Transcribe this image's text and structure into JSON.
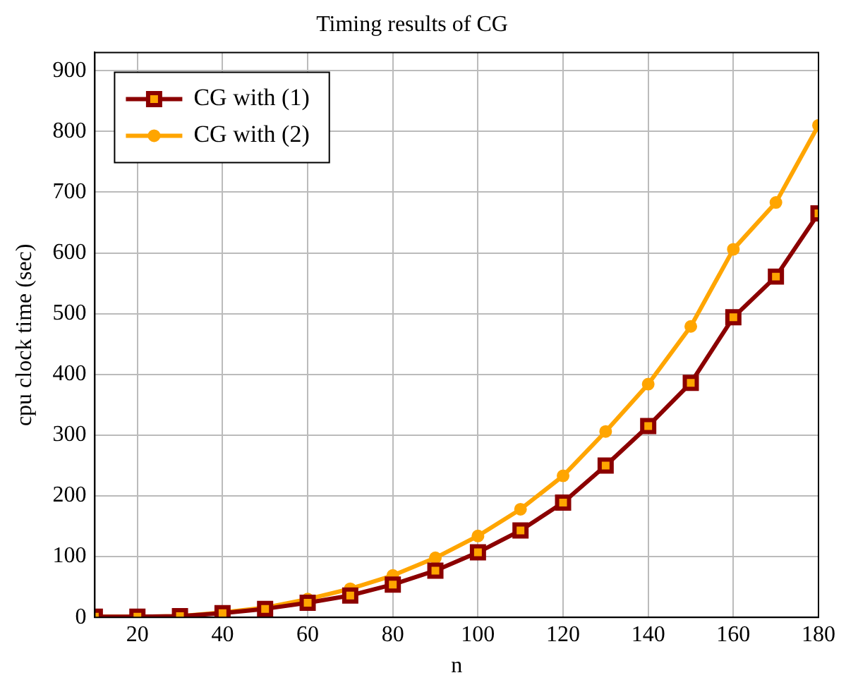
{
  "chart_data": {
    "type": "line",
    "title": "Timing results of CG",
    "xlabel": "n",
    "ylabel": "cpu clock time (sec)",
    "x": [
      10,
      20,
      30,
      40,
      50,
      60,
      70,
      80,
      90,
      100,
      110,
      120,
      130,
      140,
      150,
      160,
      170,
      180
    ],
    "series": [
      {
        "name": "CG with (1)",
        "color": "#8b0000",
        "marker": "square",
        "values": [
          1,
          1,
          2,
          7,
          14,
          24,
          36,
          54,
          77,
          107,
          143,
          189,
          250,
          315,
          386,
          494,
          561,
          665
        ]
      },
      {
        "name": "CG with (2)",
        "color": "#ffa500",
        "marker": "circle",
        "values": [
          1,
          1,
          2,
          8,
          16,
          30,
          47,
          69,
          98,
          134,
          178,
          233,
          306,
          384,
          479,
          606,
          683,
          810
        ]
      }
    ],
    "xlim": [
      10,
      180
    ],
    "xticks": [
      20,
      40,
      60,
      80,
      100,
      120,
      140,
      160,
      180
    ],
    "ylim": [
      0,
      930
    ],
    "yticks": [
      0,
      100,
      200,
      300,
      400,
      500,
      600,
      700,
      800,
      900
    ],
    "grid": true,
    "legend": "top left",
    "line_style": "solid"
  }
}
